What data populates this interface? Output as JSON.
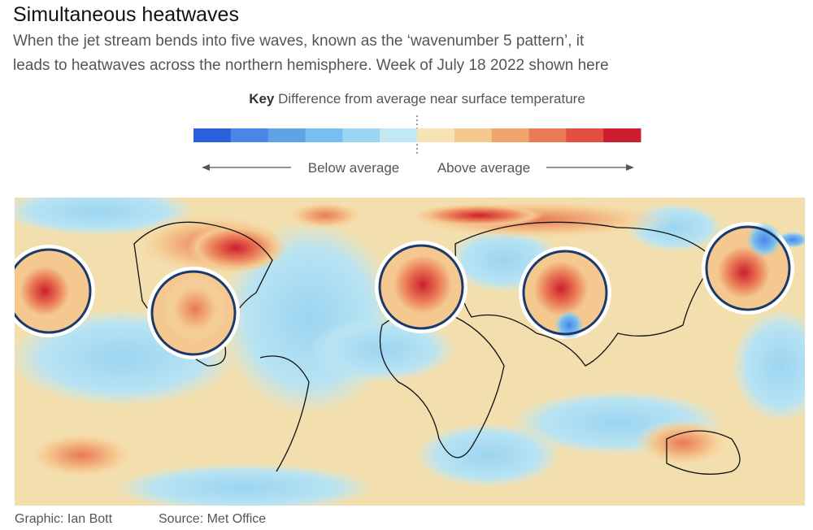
{
  "header": {
    "title": "Simultaneous heatwaves",
    "subtitle_lines": [
      "When the jet stream bends into five waves, known as the ‘wavenumber 5 pattern’, it",
      "leads to heatwaves across the northern hemisphere. Week of July 18 2022 shown here"
    ]
  },
  "key": {
    "label": "Key",
    "description": "Difference from average near surface temperature",
    "colors": [
      "#2b5fdc",
      "#4a86e8",
      "#5fa2e6",
      "#78beee",
      "#9bd5f1",
      "#c2e9f3",
      "#f6e2b4",
      "#f4c88f",
      "#efa46c",
      "#ea7955",
      "#e24e40",
      "#cc1e2f"
    ],
    "below": "Below average",
    "above": "Above average"
  },
  "footer": {
    "graphic": "Graphic: Ian Bott",
    "source": "Source: Met Office"
  }
}
